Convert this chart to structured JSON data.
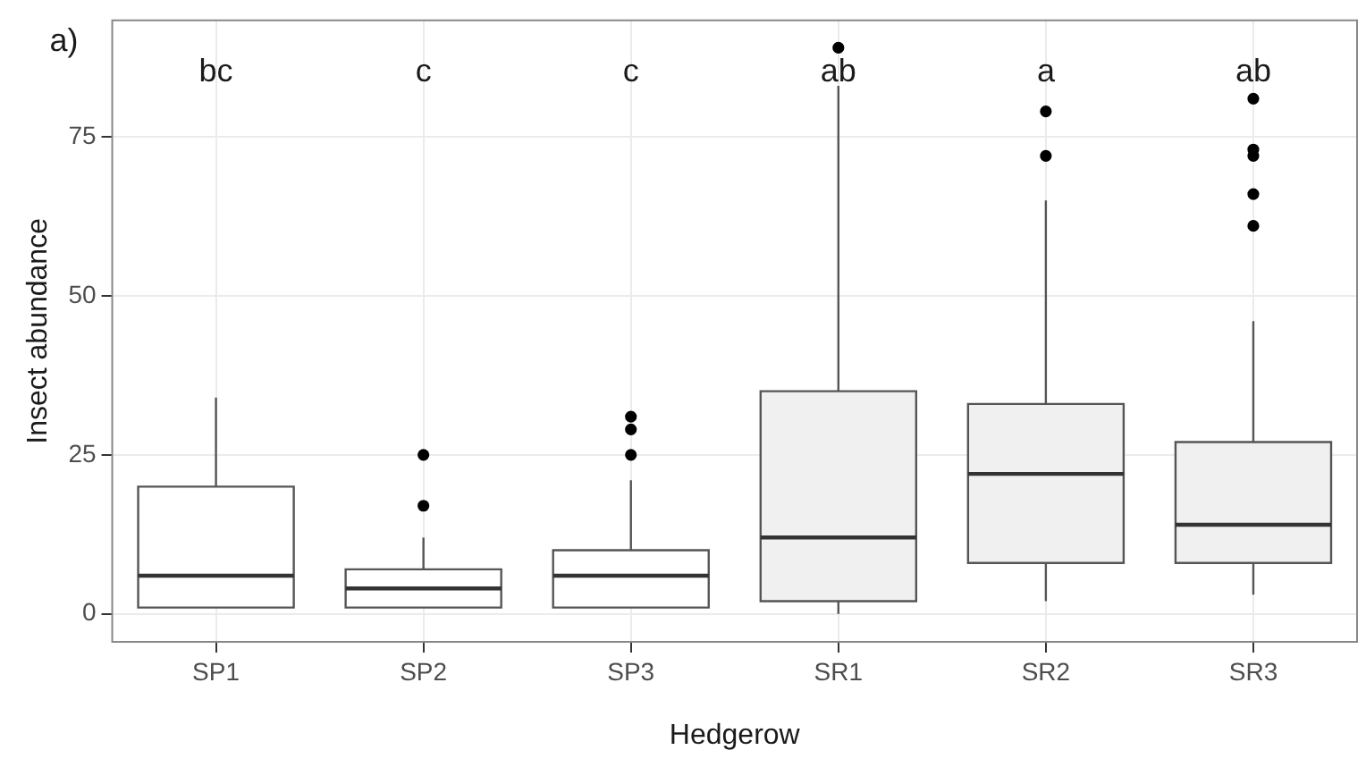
{
  "chart_data": {
    "type": "box",
    "xlabel": "Hedgerow",
    "ylabel": "Insect abundance",
    "categories": [
      "SP1",
      "SP2",
      "SP3",
      "SR1",
      "SR2",
      "SR3"
    ],
    "colors": [
      "#ffffff",
      "#ffffff",
      "#ffffff",
      "#f0f0f0",
      "#f0f0f0",
      "#f0f0f0"
    ],
    "boxes": [
      {
        "low": 1,
        "q1": 1,
        "median": 6,
        "q3": 20,
        "high": 34
      },
      {
        "low": 1,
        "q1": 1,
        "median": 4,
        "q3": 7,
        "high": 12,
        "outliers": [
          17,
          25
        ]
      },
      {
        "low": 1,
        "q1": 1,
        "median": 6,
        "q3": 10,
        "high": 21,
        "outliers": [
          25,
          29,
          31
        ]
      },
      {
        "low": 0,
        "q1": 2,
        "median": 12,
        "q3": 35,
        "high": 83,
        "outliers": [
          89
        ]
      },
      {
        "low": 2,
        "q1": 8,
        "median": 22,
        "q3": 33,
        "high": 65,
        "outliers": [
          72,
          79
        ]
      },
      {
        "low": 3,
        "q1": 8,
        "median": 14,
        "q3": 27,
        "high": 46,
        "outliers": [
          61,
          66,
          72,
          73,
          81
        ]
      }
    ],
    "ylim": [
      -4.4,
      93.3
    ],
    "yticks": [
      0,
      25,
      50,
      75
    ],
    "grid": true,
    "annotations": [
      "a)",
      "bc",
      "c",
      "c",
      "ab",
      "a",
      "ab"
    ]
  }
}
